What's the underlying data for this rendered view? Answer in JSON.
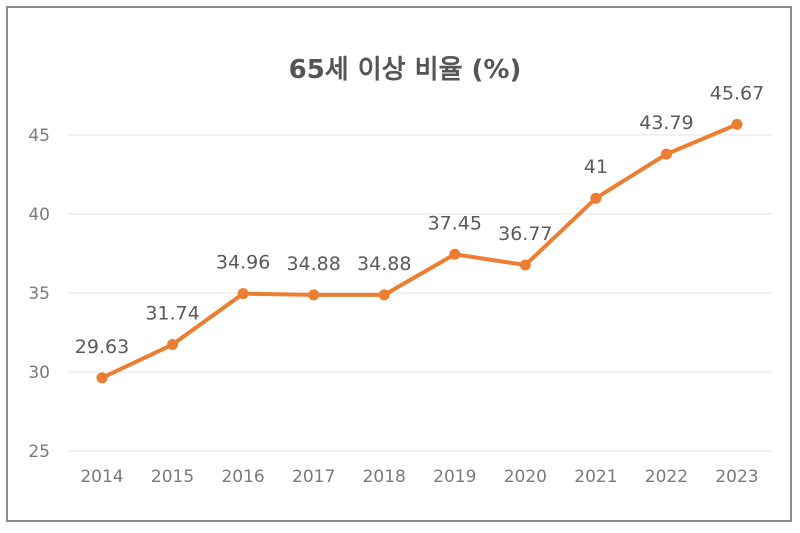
{
  "chart_data": {
    "type": "line",
    "title": "65세 이상 비율 (%)",
    "xlabel": "",
    "ylabel": "",
    "categories": [
      "2014",
      "2015",
      "2016",
      "2017",
      "2018",
      "2019",
      "2020",
      "2021",
      "2022",
      "2023"
    ],
    "series": [
      {
        "name": "65세 이상 비율",
        "values": [
          29.63,
          31.74,
          34.96,
          34.88,
          34.88,
          37.45,
          36.77,
          41,
          43.79,
          45.67
        ],
        "labels": [
          "29.63",
          "31.74",
          "34.96",
          "34.88",
          "34.88",
          "37.45",
          "36.77",
          "41",
          "43.79",
          "45.67"
        ]
      }
    ],
    "yticks": [
      "25",
      "30",
      "35",
      "40",
      "45"
    ],
    "ylim": [
      25,
      46.5
    ],
    "grid": true,
    "legend": "none",
    "color": "#ED7D31"
  }
}
